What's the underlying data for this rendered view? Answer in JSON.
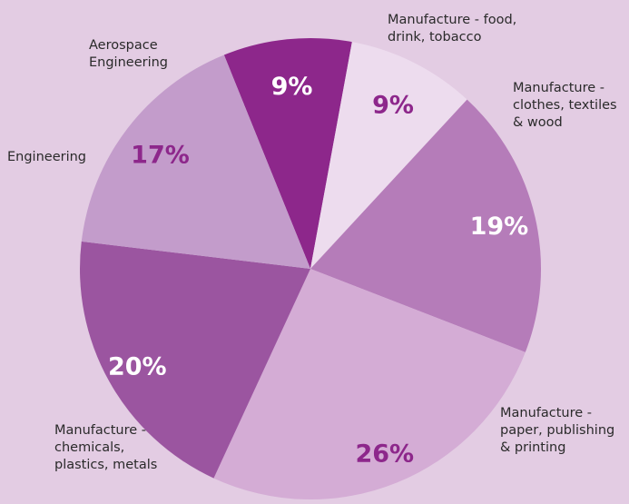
{
  "chart_data": {
    "type": "pie",
    "title": "",
    "slices": [
      {
        "label": "Manufacture - food, drink, tobacco",
        "label_lines": [
          "Manufacture - food,",
          "drink, tobacco"
        ],
        "value": 9,
        "value_label": "9%",
        "color": "#8d278b",
        "text_color": "#ffffff"
      },
      {
        "label": "Manufacture - clothes, textiles & wood",
        "label_lines": [
          "Manufacture -",
          "clothes, textiles",
          "& wood"
        ],
        "value": 9,
        "value_label": "9%",
        "color": "#eddcee",
        "text_color": "#8d278b"
      },
      {
        "label": "Manufacture - paper, publishing & printing",
        "label_lines": [
          "Manufacture -",
          "paper, publishing",
          "& printing"
        ],
        "value": 19,
        "value_label": "19%",
        "color": "#b57cb9",
        "text_color": "#ffffff"
      },
      {
        "label": "Manufacture - chemicals, plastics, metals",
        "label_lines": [
          "Manufacture -",
          "chemicals,",
          "plastics, metals"
        ],
        "value": 26,
        "value_label": "26%",
        "color": "#d4acd5",
        "text_color": "#8d278b"
      },
      {
        "label": "Engineering",
        "label_lines": [
          "Engineering"
        ],
        "value": 20,
        "value_label": "20%",
        "color": "#9b55a0",
        "text_color": "#ffffff"
      },
      {
        "label": "Aerospace Engineering",
        "label_lines": [
          "Aerospace",
          "Engineering"
        ],
        "value": 17,
        "value_label": "17%",
        "color": "#c39ccb",
        "text_color": "#8d278b"
      }
    ],
    "background_color": "#e3cce3"
  }
}
